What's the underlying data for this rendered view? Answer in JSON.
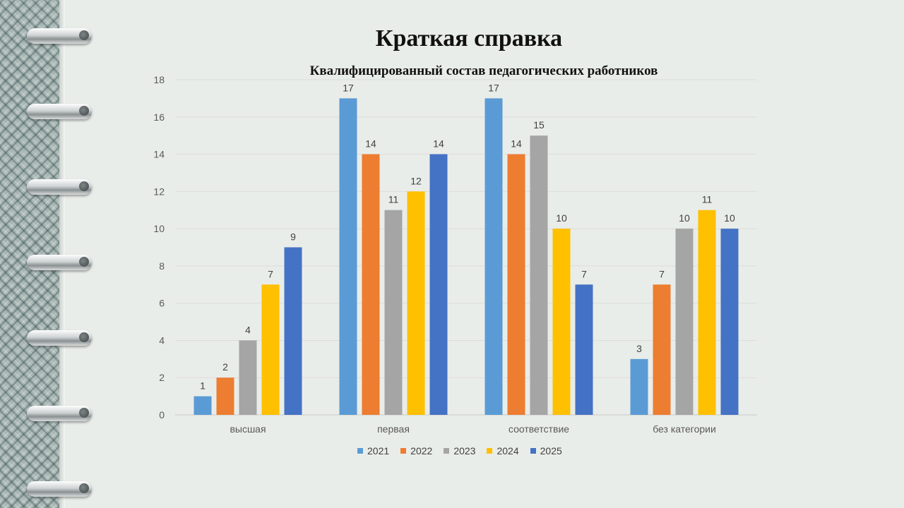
{
  "slide": {
    "title": "Краткая справка",
    "subtitle": "Квалифицированный состав  педагогических работников"
  },
  "chart_data": {
    "type": "bar",
    "categories": [
      "высшая",
      "первая",
      "соответствие",
      "без категории"
    ],
    "series": [
      {
        "name": "2021",
        "color": "#5b9bd5",
        "values": [
          1,
          17,
          17,
          3
        ]
      },
      {
        "name": "2022",
        "color": "#ed7d31",
        "values": [
          2,
          14,
          14,
          7
        ]
      },
      {
        "name": "2023",
        "color": "#a5a5a5",
        "values": [
          4,
          11,
          15,
          10
        ]
      },
      {
        "name": "2024",
        "color": "#ffc000",
        "values": [
          7,
          12,
          10,
          11
        ]
      },
      {
        "name": "2025",
        "color": "#4472c4",
        "values": [
          9,
          14,
          7,
          10
        ]
      }
    ],
    "ylim": [
      0,
      18
    ],
    "yticks": [
      0,
      2,
      4,
      6,
      8,
      10,
      12,
      14,
      16,
      18
    ],
    "grid": true,
    "legend": "bottom"
  }
}
